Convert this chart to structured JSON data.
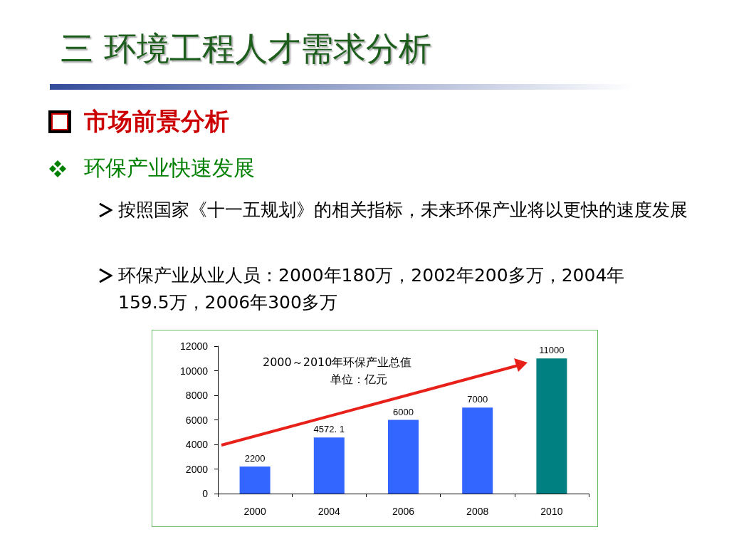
{
  "chart_data": {
    "type": "bar",
    "title": "三 环境工程人才需求分析",
    "subtitle": "市场前景分析",
    "annotations": [
      "环保产业快速发展",
      "按照国家《十一五规划》的相关指标，未来环保产业将以更快的速度发展",
      "环保产业从业人员：2000年180万，2002年200多万，2004年159.5万，2006年300多万",
      "2000～2010年环保产业总值",
      "单位：亿元"
    ],
    "categories": [
      "2000",
      "2004",
      "2006",
      "2008",
      "2010"
    ],
    "values": [
      2200,
      4572.1,
      6000,
      7000,
      11000
    ],
    "colors": [
      "#3366ff",
      "#3366ff",
      "#3366ff",
      "#3366ff",
      "#008080"
    ],
    "value_labels": [
      "2200",
      "4572. 1",
      "6000",
      "7000",
      "11000"
    ],
    "ylim": [
      0,
      12000
    ],
    "yticks": [
      0,
      2000,
      4000,
      6000,
      8000,
      10000,
      12000
    ],
    "grid": false
  }
}
